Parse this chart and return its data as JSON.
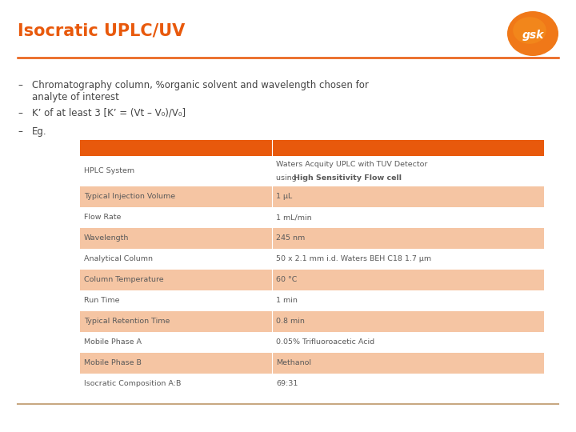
{
  "title": "Isocratic UPLC/UV",
  "title_color": "#E8590C",
  "title_fontsize": 15,
  "bg_color": "#FFFFFF",
  "orange_line_color": "#E8590C",
  "bullet_points_line1": "Chromatography column, %organic solvent and wavelength chosen for",
  "bullet_points_line1b": "analyte of interest",
  "bullet_point2": "K’ of at least 3 [K’ = (Vt – V₀)/V₀]",
  "bullet_point3": "Eg.",
  "table_header_color": "#E8590C",
  "table_row_colors": [
    "#FFFFFF",
    "#F5C5A3"
  ],
  "table_rows": [
    [
      "HPLC System",
      "Waters Acquity UPLC with TUV Detector",
      "using ",
      "High Sensitivity Flow cell"
    ],
    [
      "Typical Injection Volume",
      "1 μL",
      "",
      ""
    ],
    [
      "Flow Rate",
      "1 mL/min",
      "",
      ""
    ],
    [
      "Wavelength",
      "245 nm",
      "",
      ""
    ],
    [
      "Analytical Column",
      "50 x 2.1 mm i.d. Waters BEH C18 1.7 μm",
      "",
      ""
    ],
    [
      "Column Temperature",
      "60 °C",
      "",
      ""
    ],
    [
      "Run Time",
      "1 min",
      "",
      ""
    ],
    [
      "Typical Retention Time",
      "0.8 min",
      "",
      ""
    ],
    [
      "Mobile Phase A",
      "0.05% Trifluoroacetic Acid",
      "",
      ""
    ],
    [
      "Mobile Phase B",
      "Methanol",
      "",
      ""
    ],
    [
      "Isocratic Composition A:B",
      "69:31",
      "",
      ""
    ]
  ],
  "table_text_color": "#5A5A5A",
  "table_fontsize": 6.8,
  "bottom_line_color": "#C8A882",
  "gsk_colors": [
    "#F5821F",
    "#E05206"
  ],
  "bullet_fontsize": 8.5,
  "bullet_color": "#444444"
}
